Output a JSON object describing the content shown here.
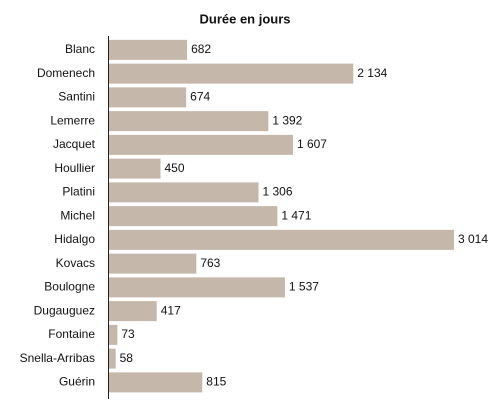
{
  "chart_data": {
    "type": "bar",
    "orientation": "horizontal",
    "title": "Durée en jours",
    "categories": [
      "Blanc",
      "Domenech",
      "Santini",
      "Lemerre",
      "Jacquet",
      "Houllier",
      "Platini",
      "Michel",
      "Hidalgo",
      "Kovacs",
      "Boulogne",
      "Dugauguez",
      "Fontaine",
      "Snella-Arribas",
      "Guérin"
    ],
    "values": [
      682,
      2134,
      674,
      1392,
      1607,
      450,
      1306,
      1471,
      3014,
      763,
      1537,
      417,
      73,
      58,
      815
    ],
    "value_labels": [
      "682",
      "2 134",
      "674",
      "1 392",
      "1 607",
      "450",
      "1 306",
      "1 471",
      "3 014",
      "763",
      "1 537",
      "417",
      "73",
      "58",
      "815"
    ],
    "color": "#c5b8aa"
  }
}
